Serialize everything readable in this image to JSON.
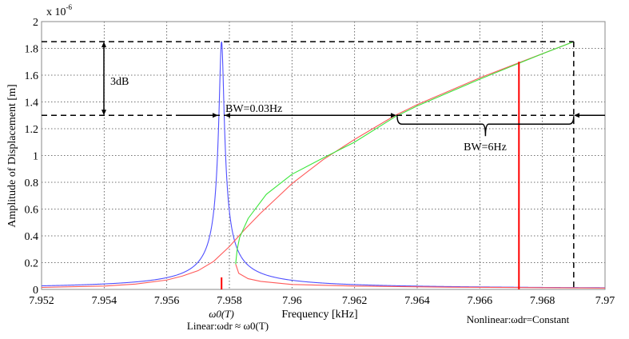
{
  "chart_data": {
    "type": "line",
    "xlabel": "Frequency [kHz]",
    "ylabel": "Amplitude of Displacement [m]",
    "y_multiplier": "x 10",
    "y_multiplier_exp": "-6",
    "xlim": [
      7.952,
      7.97
    ],
    "ylim": [
      0,
      2
    ],
    "grid": true,
    "xticks": [
      "7.952",
      "7.954",
      "7.956",
      "7.958",
      "7.96",
      "7.962",
      "7.964",
      "7.966",
      "7.968",
      "7.97"
    ],
    "yticks": [
      "0",
      "0.2",
      "0.4",
      "0.6",
      "0.8",
      "1",
      "1.2",
      "1.4",
      "1.6",
      "1.8",
      "2"
    ],
    "series": [
      {
        "color": "#4f4fff",
        "kind": "lorentzian",
        "peak_x": 7.95775,
        "peak_y": 1.85,
        "halfwidth": 8.33e-05
      },
      {
        "color": "#ff5a5a",
        "points": [
          [
            7.952,
            0.015
          ],
          [
            7.954,
            0.025
          ],
          [
            7.955,
            0.04
          ],
          [
            7.956,
            0.07
          ],
          [
            7.9565,
            0.1
          ],
          [
            7.957,
            0.14
          ],
          [
            7.9575,
            0.21
          ],
          [
            7.958,
            0.32
          ],
          [
            7.9585,
            0.45
          ],
          [
            7.959,
            0.57
          ],
          [
            7.9595,
            0.68
          ],
          [
            7.96,
            0.79
          ],
          [
            7.961,
            0.97
          ],
          [
            7.962,
            1.12
          ],
          [
            7.9633,
            1.3
          ],
          [
            7.964,
            1.38
          ],
          [
            7.966,
            1.58
          ],
          [
            7.968,
            1.76
          ],
          [
            7.969,
            1.85
          ]
        ]
      },
      {
        "color": "#ff5a5a",
        "points": [
          [
            7.9582,
            0.19
          ],
          [
            7.9583,
            0.12
          ],
          [
            7.9586,
            0.08
          ],
          [
            7.959,
            0.06
          ],
          [
            7.96,
            0.037
          ],
          [
            7.962,
            0.025
          ],
          [
            7.965,
            0.017
          ],
          [
            7.97,
            0.01
          ]
        ]
      },
      {
        "color": "#3ce63c",
        "points": [
          [
            7.9582,
            0.19
          ],
          [
            7.95825,
            0.3
          ],
          [
            7.95833,
            0.39
          ],
          [
            7.9586,
            0.53
          ],
          [
            7.95918,
            0.71
          ],
          [
            7.96,
            0.86
          ],
          [
            7.9609,
            0.97
          ],
          [
            7.962,
            1.1
          ],
          [
            7.9633,
            1.29
          ],
          [
            7.964,
            1.37
          ],
          [
            7.966,
            1.57
          ],
          [
            7.968,
            1.76
          ],
          [
            7.969,
            1.85
          ]
        ]
      }
    ],
    "markers": [
      {
        "color": "#ff0000",
        "x": 7.95775,
        "y": 0.09
      },
      {
        "color": "#ff0000",
        "x": 7.96725,
        "y": 1.7
      }
    ],
    "levels": {
      "peak": 1.85,
      "half_power": 1.3,
      "nonlinear_edge_x": 7.969
    },
    "annotations": {
      "db": "3dB",
      "bw_linear": "BW=0.03Hz",
      "bw_nonlinear": "BW=6Hz",
      "omega0": "ω0(T)",
      "linear_note": "Linear:ωdr ≈ ω0(T)",
      "nonlinear_note": "Nonlinear:ωdr=Constant"
    }
  }
}
